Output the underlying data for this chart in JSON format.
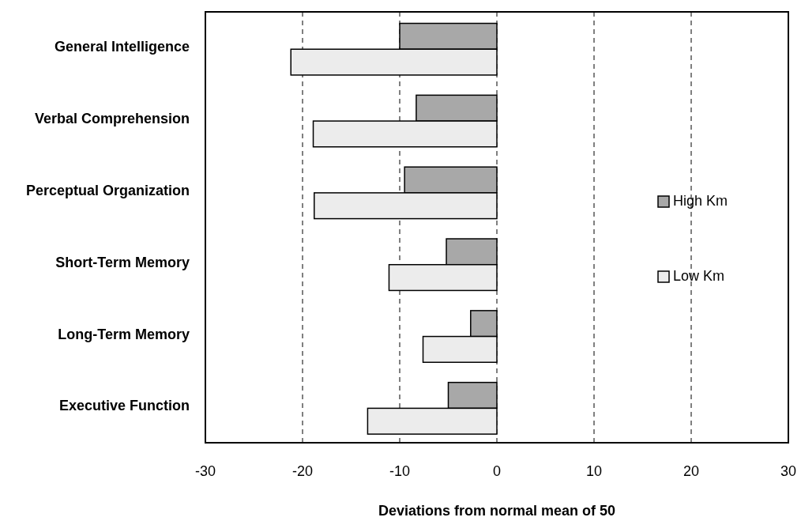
{
  "chart_data": {
    "type": "bar",
    "orientation": "horizontal",
    "xlabel": "Deviations from normal mean of 50",
    "categories": [
      "General Intelligence",
      "Verbal Comprehension",
      "Perceptual Organization",
      "Short-Term Memory",
      "Long-Term Memory",
      "Executive Function"
    ],
    "series": [
      {
        "name": "High Km",
        "color": "#a8a8a8",
        "values": [
          -10.0,
          -8.3,
          -9.5,
          -5.2,
          -2.7,
          -5.0
        ]
      },
      {
        "name": "Low Km",
        "color": "#ececec",
        "values": [
          -21.2,
          -18.9,
          -18.8,
          -11.1,
          -7.6,
          -13.3
        ]
      }
    ],
    "xlim": [
      -30,
      30
    ],
    "xticks": [
      -30,
      -20,
      -10,
      0,
      10,
      20,
      30
    ],
    "grid": "x",
    "legend": "right"
  }
}
